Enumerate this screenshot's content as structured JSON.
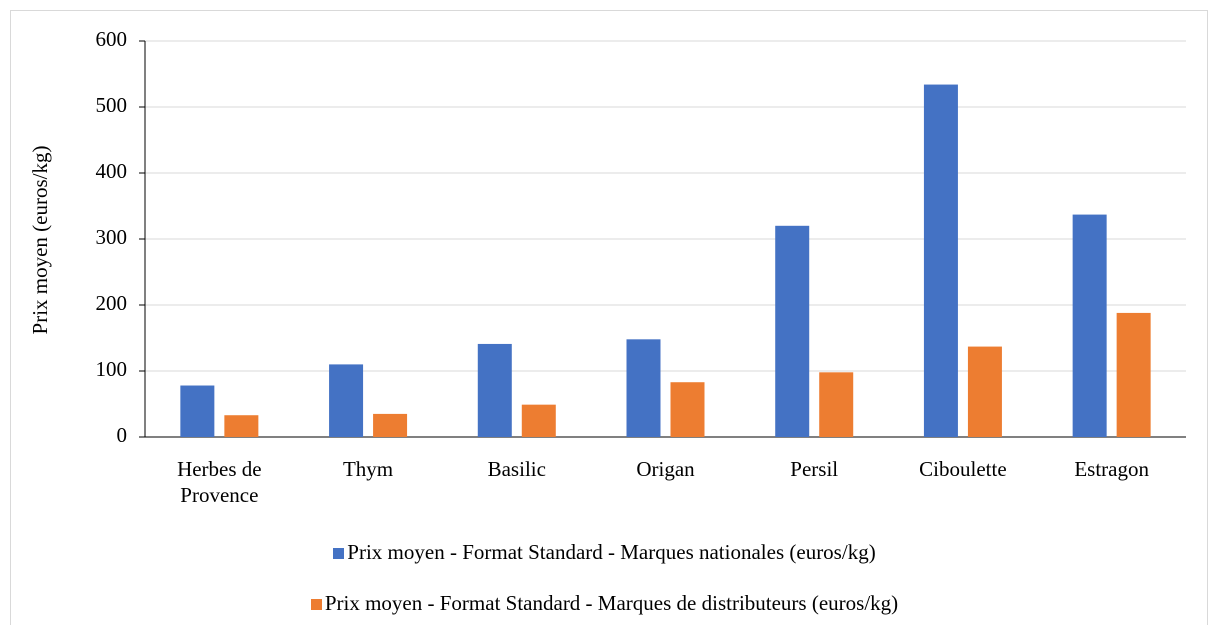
{
  "chart_data": {
    "type": "bar",
    "y_label": "Prix moyen (euros/kg)",
    "categories": [
      "Herbes de Provence",
      "Thym",
      "Basilic",
      "Origan",
      "Persil",
      "Ciboulette",
      "Estragon"
    ],
    "series": [
      {
        "name": "Prix moyen - Format Standard - Marques nationales (euros/kg)",
        "color": "#4472c4",
        "values": [
          78,
          110,
          141,
          148,
          320,
          534,
          337
        ]
      },
      {
        "name": "Prix moyen - Format Standard - Marques de distributeurs (euros/kg)",
        "color": "#ed7d31",
        "values": [
          33,
          35,
          49,
          83,
          98,
          137,
          188
        ]
      }
    ],
    "ylim": [
      0,
      600
    ],
    "yticks": [
      0,
      100,
      200,
      300,
      400,
      500,
      600
    ],
    "grid": true,
    "legend": "bottom"
  }
}
